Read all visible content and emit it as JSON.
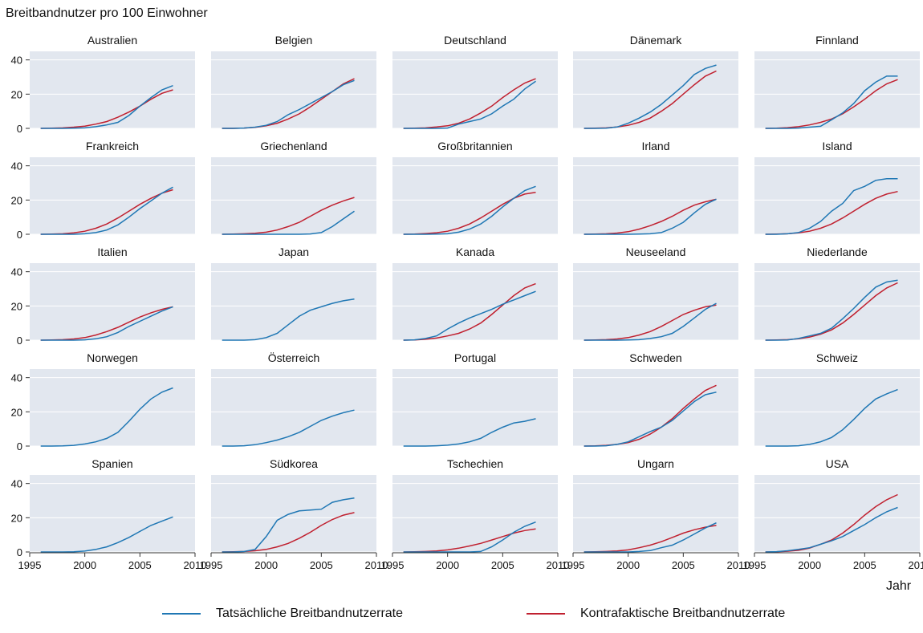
{
  "chart_data": {
    "type": "line",
    "ylabel": "Breitbandnutzer pro 100 Einwohner",
    "xlabel": "Jahr",
    "xlim": [
      1995,
      2010
    ],
    "ylim": [
      0,
      45
    ],
    "xticks": [
      1995,
      2000,
      2005,
      2010
    ],
    "yticks": [
      0,
      20,
      40
    ],
    "grid": true,
    "legend_position": "bottom",
    "colors": {
      "actual": "#1f77b4",
      "counterfactual": "#c0202f",
      "panel_bg": "#e2e7ef",
      "grid": "#ffffff"
    },
    "series_names": {
      "actual": "Tatsächliche Breitbandnutzerrate",
      "counterfactual": "Kontrafaktische Breitbandnutzerrate"
    },
    "years": [
      1996,
      1997,
      1998,
      1999,
      2000,
      2001,
      2002,
      2003,
      2004,
      2005,
      2006,
      2007,
      2008
    ],
    "panels": [
      {
        "name": "Australien",
        "actual": [
          0,
          0,
          0,
          0.1,
          0.3,
          1,
          2,
          3.5,
          7.5,
          13,
          18,
          22.5,
          25
        ],
        "counterfactual": [
          0,
          0.1,
          0.3,
          0.7,
          1.3,
          2.5,
          4,
          6.5,
          9.5,
          13,
          17,
          20.5,
          22.5
        ]
      },
      {
        "name": "Belgien",
        "actual": [
          0,
          0,
          0.2,
          0.7,
          1.8,
          4,
          8,
          11,
          14.5,
          18,
          21.5,
          25.5,
          28
        ],
        "counterfactual": [
          0,
          0,
          0.2,
          0.6,
          1.5,
          3,
          5.5,
          8.5,
          12.5,
          17,
          21.5,
          26,
          29
        ]
      },
      {
        "name": "Deutschland",
        "actual": [
          0,
          0,
          0,
          0,
          0.2,
          2.5,
          4,
          5.5,
          8.5,
          13,
          17,
          23,
          27.5
        ],
        "counterfactual": [
          0,
          0.1,
          0.3,
          0.8,
          1.5,
          3,
          5.5,
          9,
          13,
          18,
          22.5,
          26.5,
          29
        ]
      },
      {
        "name": "Dänemark",
        "actual": [
          0,
          0,
          0.1,
          0.8,
          3,
          6,
          9.5,
          14,
          19.5,
          25,
          31.5,
          35,
          37
        ],
        "counterfactual": [
          0,
          0.1,
          0.3,
          0.8,
          1.8,
          3.5,
          6,
          10,
          14.5,
          20,
          25.5,
          30.5,
          33.5
        ]
      },
      {
        "name": "Finnland",
        "actual": [
          0,
          0,
          0,
          0.2,
          0.7,
          1.2,
          5,
          9,
          14.5,
          22,
          27,
          30.5,
          30.5
        ],
        "counterfactual": [
          0,
          0.1,
          0.4,
          1,
          2,
          3.5,
          5.5,
          8.5,
          12.5,
          17,
          22,
          26,
          28.5
        ]
      },
      {
        "name": "Frankreich",
        "actual": [
          0,
          0,
          0,
          0,
          0.3,
          1,
          2.5,
          5.5,
          10,
          15,
          19.5,
          24,
          27.5
        ],
        "counterfactual": [
          0,
          0.1,
          0.3,
          0.8,
          1.8,
          3.5,
          6,
          9.5,
          13.5,
          17.5,
          21,
          24,
          26
        ]
      },
      {
        "name": "Griechenland",
        "actual": [
          0,
          0,
          0,
          0,
          0,
          0,
          0,
          0,
          0.2,
          1,
          4.5,
          9,
          13.5
        ],
        "counterfactual": [
          0,
          0.1,
          0.3,
          0.6,
          1.2,
          2.5,
          4.5,
          7,
          10.5,
          14,
          17,
          19.5,
          21.5
        ]
      },
      {
        "name": "Großbritannien",
        "actual": [
          0,
          0,
          0,
          0.1,
          0.3,
          1.2,
          3,
          6,
          10.5,
          16,
          21,
          25.5,
          28
        ],
        "counterfactual": [
          0,
          0.1,
          0.4,
          0.9,
          1.8,
          3.5,
          6,
          9.5,
          13.5,
          17.5,
          21,
          23.5,
          24.5
        ]
      },
      {
        "name": "Irland",
        "actual": [
          0,
          0,
          0,
          0,
          0,
          0.1,
          0.3,
          1,
          3.5,
          7,
          12.5,
          17.5,
          20.5
        ],
        "counterfactual": [
          0,
          0.1,
          0.3,
          0.7,
          1.5,
          3,
          5,
          7.5,
          10.5,
          14,
          17,
          19,
          20.5
        ]
      },
      {
        "name": "Island",
        "actual": [
          0,
          0,
          0.3,
          1,
          3.5,
          7.5,
          13.5,
          18,
          25.5,
          28,
          31.5,
          32.5,
          32.5
        ],
        "counterfactual": [
          0,
          0.1,
          0.3,
          0.8,
          1.8,
          3.5,
          6,
          9.5,
          13.5,
          17.5,
          21,
          23.5,
          25
        ]
      },
      {
        "name": "Italien",
        "actual": [
          0,
          0,
          0,
          0,
          0.2,
          0.8,
          2,
          4.5,
          8,
          11,
          14,
          17,
          19.5
        ],
        "counterfactual": [
          0,
          0.1,
          0.3,
          0.7,
          1.5,
          3,
          5,
          7.5,
          10.5,
          13.5,
          16,
          18,
          19.5
        ]
      },
      {
        "name": "Japan",
        "actual": [
          0,
          0,
          0,
          0.3,
          1.5,
          4,
          9,
          14,
          17.5,
          19.5,
          21.5,
          23,
          24
        ]
      },
      {
        "name": "Kanada",
        "actual": [
          0,
          0.2,
          1,
          2.5,
          6.5,
          10,
          13,
          15.5,
          18,
          21,
          23.5,
          26,
          28.5
        ],
        "counterfactual": [
          0,
          0.1,
          0.5,
          1.2,
          2.5,
          4,
          6.5,
          10,
          15,
          20.5,
          26,
          30.5,
          33
        ]
      },
      {
        "name": "Neuseeland",
        "actual": [
          0,
          0,
          0,
          0,
          0.1,
          0.3,
          1,
          2,
          4,
          8,
          13,
          18,
          21.5
        ],
        "counterfactual": [
          0,
          0.1,
          0.3,
          0.7,
          1.5,
          3,
          5,
          8,
          11.5,
          15,
          17.5,
          19.5,
          20.5
        ]
      },
      {
        "name": "Niederlande",
        "actual": [
          0,
          0,
          0.1,
          1,
          2.5,
          4,
          7,
          12.5,
          18.5,
          25,
          31,
          34,
          35
        ],
        "counterfactual": [
          0,
          0.1,
          0.3,
          0.8,
          1.8,
          3.5,
          6,
          10,
          15,
          20.5,
          26,
          30.5,
          33.5
        ]
      },
      {
        "name": "Norwegen",
        "actual": [
          0,
          0,
          0.1,
          0.4,
          1.2,
          2.5,
          4.5,
          8,
          14.5,
          21.5,
          27.5,
          31.5,
          34
        ]
      },
      {
        "name": "Österreich",
        "actual": [
          0,
          0,
          0.2,
          0.8,
          2,
          3.5,
          5.5,
          8,
          11.5,
          15,
          17.5,
          19.5,
          21
        ]
      },
      {
        "name": "Portugal",
        "actual": [
          0,
          0,
          0,
          0.2,
          0.5,
          1.2,
          2.5,
          4.5,
          8,
          11,
          13.5,
          14.5,
          16
        ]
      },
      {
        "name": "Schweden",
        "actual": [
          0,
          0,
          0.2,
          1,
          2.5,
          5.5,
          8.5,
          11,
          15,
          20.5,
          26,
          30,
          31.5
        ],
        "counterfactual": [
          0,
          0.1,
          0.4,
          1,
          2,
          4,
          7,
          11,
          16,
          22,
          27.5,
          32.5,
          35.5
        ]
      },
      {
        "name": "Schweiz",
        "actual": [
          0,
          0,
          0,
          0.2,
          1,
          2.5,
          5,
          9.5,
          15.5,
          22,
          27.5,
          30.5,
          33
        ]
      },
      {
        "name": "Spanien",
        "actual": [
          0,
          0,
          0,
          0.1,
          0.5,
          1.5,
          3,
          5.5,
          8.5,
          12,
          15.5,
          18,
          20.5
        ]
      },
      {
        "name": "Südkorea",
        "actual": [
          0,
          0,
          0.3,
          1.5,
          9,
          18.5,
          22,
          24,
          24.5,
          25,
          29,
          30.5,
          31.5
        ],
        "counterfactual": [
          0,
          0.1,
          0.3,
          0.7,
          1.5,
          3,
          5,
          8,
          11.5,
          15.5,
          19,
          21.5,
          23
        ]
      },
      {
        "name": "Tschechien",
        "actual": [
          0,
          0,
          0,
          0,
          0,
          0,
          0,
          0.3,
          3,
          7,
          11.5,
          15,
          17.5
        ],
        "counterfactual": [
          0,
          0.1,
          0.3,
          0.6,
          1.2,
          2.2,
          3.5,
          5,
          7,
          9,
          11,
          12.5,
          13.5
        ]
      },
      {
        "name": "Ungarn",
        "actual": [
          0,
          0,
          0,
          0,
          0,
          0.3,
          0.8,
          2.5,
          4,
          7,
          10.5,
          14,
          17
        ],
        "counterfactual": [
          0,
          0.1,
          0.3,
          0.6,
          1.2,
          2.5,
          4,
          6,
          8.5,
          11,
          13,
          14.5,
          15.5
        ]
      },
      {
        "name": "USA",
        "actual": [
          0,
          0.2,
          0.7,
          1.5,
          2.5,
          4.5,
          6.5,
          9,
          12.5,
          16,
          20,
          23.5,
          26
        ],
        "counterfactual": [
          0,
          0.1,
          0.4,
          1,
          2.3,
          4.5,
          7,
          11,
          16,
          21.5,
          26.5,
          30.5,
          33.5
        ]
      }
    ]
  }
}
